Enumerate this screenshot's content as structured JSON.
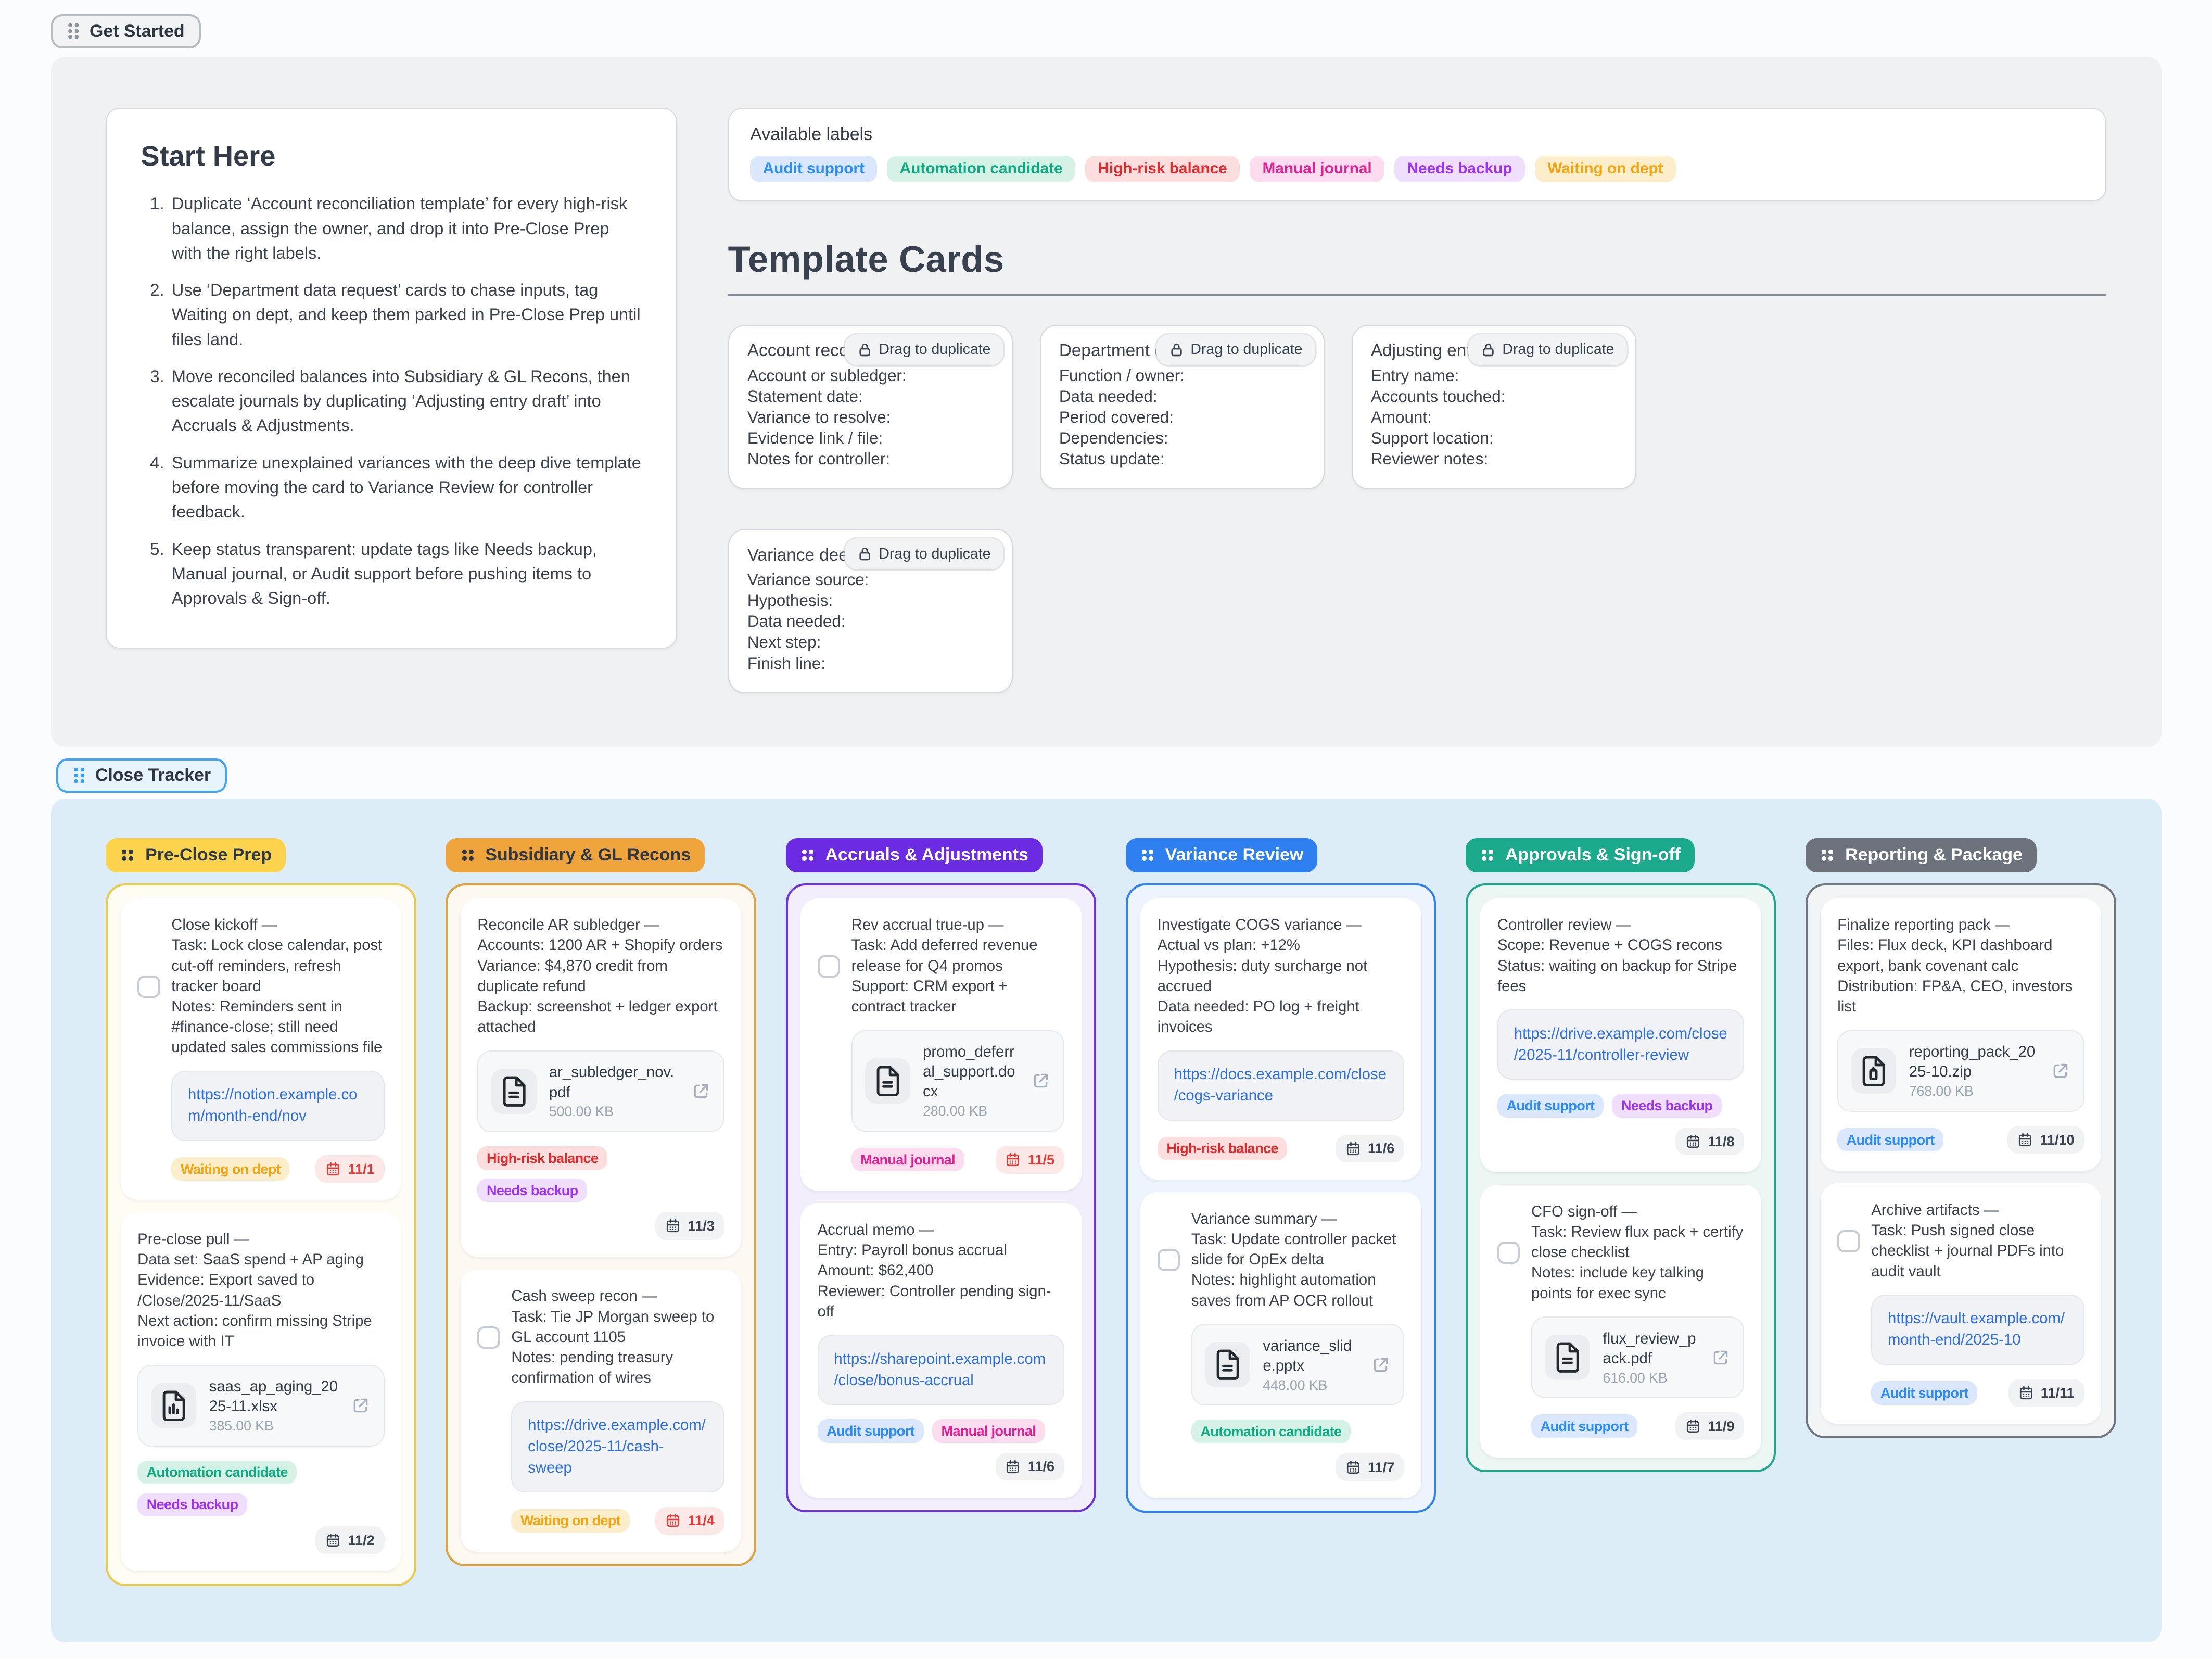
{
  "get_started": {
    "label": "Get Started"
  },
  "start_here": {
    "title": "Start Here",
    "items": [
      "Duplicate ‘Account reconciliation template’ for every high-risk balance, assign the owner, and drop it into Pre-Close Prep with the right labels.",
      "Use ‘Department data request’ cards to chase inputs, tag Waiting on dept, and keep them parked in Pre-Close Prep until files land.",
      "Move reconciled balances into Subsidiary & GL Recons, then escalate journals by duplicating ‘Adjusting entry draft’ into Accruals & Adjustments.",
      "Summarize unexplained variances with the deep dive template before moving the card to Variance Review for controller feedback.",
      "Keep status transparent: update tags like Needs backup, Manual journal, or Audit support before pushing items to Approvals & Sign-off."
    ]
  },
  "available_labels": {
    "title": "Available labels",
    "labels": [
      "Audit support",
      "Automation candidate",
      "High-risk balance",
      "Manual journal",
      "Needs backup",
      "Waiting on dept"
    ]
  },
  "template_section": {
    "title": "Template Cards",
    "drag_badge": "Drag to duplicate",
    "cards": [
      {
        "title": "Account reconcil",
        "lines": [
          "Account or subledger:",
          "Statement date:",
          "Variance to resolve:",
          "Evidence link / file:",
          "Notes for controller:"
        ]
      },
      {
        "title": "Department data",
        "lines": [
          "Function / owner:",
          "Data needed:",
          "Period covered:",
          "Dependencies:",
          "Status update:"
        ]
      },
      {
        "title": "Adjusting entry d",
        "lines": [
          "Entry name:",
          "Accounts touched:",
          "Amount:",
          "Support location:",
          "Reviewer notes:"
        ]
      },
      {
        "title": "Variance deep di",
        "lines": [
          "Variance source:",
          "Hypothesis:",
          "Data needed:",
          "Next step:",
          "Finish line:"
        ]
      }
    ]
  },
  "close_tracker": {
    "label": "Close Tracker"
  },
  "board": {
    "columns": [
      {
        "name": "Pre-Close Prep",
        "theme": "yellow",
        "cards": [
          {
            "checkbox": true,
            "text_lines": [
              "Close kickoff —",
              "Task: Lock close calendar, post cut-off reminders, refresh tracker board",
              "Notes: Reminders sent in #finance-close; still need updated sales commissions file"
            ],
            "link": "https://notion.example.com/month-end/nov",
            "labels": [
              "Waiting on dept"
            ],
            "due": {
              "text": "11/1",
              "status": "overdue"
            }
          },
          {
            "checkbox": false,
            "text_lines": [
              "Pre-close pull —",
              "Data set: SaaS spend + AP aging",
              "Evidence: Export saved to /Close/2025-11/SaaS",
              "Next action: confirm missing Stripe invoice with IT"
            ],
            "file": {
              "name": "saas_ap_aging_2025-11.xlsx",
              "size": "385.00 KB",
              "icon": "file_chart"
            },
            "labels": [
              "Automation candidate",
              "Needs backup"
            ],
            "due": {
              "text": "11/2",
              "status": "normal"
            }
          }
        ]
      },
      {
        "name": "Subsidiary & GL Recons",
        "theme": "orange",
        "cards": [
          {
            "checkbox": false,
            "text_lines": [
              "Reconcile AR subledger —",
              "Accounts: 1200 AR + Shopify orders",
              "Variance: $4,870 credit from duplicate refund",
              "Backup: screenshot + ledger export attached"
            ],
            "file": {
              "name": "ar_subledger_nov.pdf",
              "size": "500.00 KB",
              "icon": "file_lines"
            },
            "labels": [
              "High-risk balance",
              "Needs backup"
            ],
            "due": {
              "text": "11/3",
              "status": "normal"
            }
          },
          {
            "checkbox": true,
            "text_lines": [
              "Cash sweep recon —",
              "Task: Tie JP Morgan sweep to GL account 1105",
              "Notes: pending treasury confirmation of wires"
            ],
            "link": "https://drive.example.com/close/2025-11/cash-sweep",
            "labels": [
              "Waiting on dept"
            ],
            "due": {
              "text": "11/4",
              "status": "overdue"
            }
          }
        ]
      },
      {
        "name": "Accruals & Adjustments",
        "theme": "purple",
        "cards": [
          {
            "checkbox": true,
            "text_lines": [
              "Rev accrual true-up —",
              "Task: Add deferred revenue release for Q4 promos",
              "Support: CRM export + contract tracker"
            ],
            "file": {
              "name": "promo_deferral_support.docx",
              "size": "280.00 KB",
              "icon": "file_lines"
            },
            "labels": [
              "Manual journal"
            ],
            "due": {
              "text": "11/5",
              "status": "overdue"
            }
          },
          {
            "checkbox": false,
            "text_lines": [
              "Accrual memo —",
              "Entry: Payroll bonus accrual",
              "Amount: $62,400",
              "Reviewer: Controller pending sign-off"
            ],
            "link": "https://sharepoint.example.com/close/bonus-accrual",
            "labels": [
              "Audit support",
              "Manual journal"
            ],
            "due": {
              "text": "11/6",
              "status": "normal"
            }
          }
        ]
      },
      {
        "name": "Variance Review",
        "theme": "blue",
        "cards": [
          {
            "checkbox": false,
            "text_lines": [
              "Investigate COGS variance —",
              "Actual vs plan: +12%",
              "Hypothesis: duty surcharge not accrued",
              "Data needed: PO log + freight invoices"
            ],
            "link": "https://docs.example.com/close/cogs-variance",
            "labels": [
              "High-risk balance"
            ],
            "due": {
              "text": "11/6",
              "status": "normal"
            }
          },
          {
            "checkbox": true,
            "text_lines": [
              "Variance summary —",
              "Task: Update controller packet slide for OpEx delta",
              "Notes: highlight automation saves from AP OCR rollout"
            ],
            "file": {
              "name": "variance_slide.pptx",
              "size": "448.00 KB",
              "icon": "file_lines"
            },
            "labels": [
              "Automation candidate"
            ],
            "due": {
              "text": "11/7",
              "status": "normal"
            }
          }
        ]
      },
      {
        "name": "Approvals & Sign-off",
        "theme": "teal",
        "cards": [
          {
            "checkbox": false,
            "text_lines": [
              "Controller review —",
              "Scope: Revenue + COGS recons",
              "Status: waiting on backup for Stripe fees"
            ],
            "link": "https://drive.example.com/close/2025-11/controller-review",
            "labels": [
              "Audit support",
              "Needs backup"
            ],
            "due": {
              "text": "11/8",
              "status": "normal"
            }
          },
          {
            "checkbox": true,
            "text_lines": [
              "CFO sign-off —",
              "Task: Review flux pack + certify close checklist",
              "Notes: include key talking points for exec sync"
            ],
            "file": {
              "name": "flux_review_pack.pdf",
              "size": "616.00 KB",
              "icon": "file_lines"
            },
            "labels": [
              "Audit support"
            ],
            "due": {
              "text": "11/9",
              "status": "normal"
            }
          }
        ]
      },
      {
        "name": "Reporting & Package",
        "theme": "gray",
        "cards": [
          {
            "checkbox": false,
            "text_lines": [
              "Finalize reporting pack —",
              "Files: Flux deck, KPI dashboard export, bank covenant calc",
              "Distribution: FP&A, CEO, investors list"
            ],
            "file": {
              "name": "reporting_pack_2025-10.zip",
              "size": "768.00 KB",
              "icon": "file_zip"
            },
            "labels": [
              "Audit support"
            ],
            "due": {
              "text": "11/10",
              "status": "normal"
            }
          },
          {
            "checkbox": true,
            "text_lines": [
              "Archive artifacts —",
              "Task: Push signed close checklist + journal PDFs into audit vault"
            ],
            "link": "https://vault.example.com/month-end/2025-10",
            "labels": [
              "Audit support"
            ],
            "due": {
              "text": "11/11",
              "status": "normal"
            }
          }
        ]
      }
    ]
  },
  "colors": {
    "page_bg": "#fbfcfe",
    "top_panel_bg": "#f0f1f3",
    "board_bg": "#dcedf7",
    "link": "#2e6fe0",
    "labels": {
      "Audit support": {
        "bg": "#dbe7fd",
        "fg": "#2b8bf7"
      },
      "Automation candidate": {
        "bg": "#d6f2e6",
        "fg": "#0fa981"
      },
      "High-risk balance": {
        "bg": "#fcdede",
        "fg": "#df2b2b"
      },
      "Manual journal": {
        "bg": "#fcdcef",
        "fg": "#e0218f"
      },
      "Needs backup": {
        "bg": "#efdefc",
        "fg": "#9c33f2"
      },
      "Waiting on dept": {
        "bg": "#fdeecb",
        "fg": "#f2a413"
      }
    },
    "themes": {
      "yellow": {
        "header_bg": "#fcd34d",
        "header_fg": "#303844",
        "border": "#eac94e",
        "body_bg": "#fefcf3"
      },
      "orange": {
        "header_bg": "#f0a43c",
        "header_fg": "#303844",
        "border": "#dfa040",
        "body_bg": "#fdf8f0"
      },
      "purple": {
        "header_bg": "#6a2be2",
        "header_fg": "#ffffff",
        "border": "#6d31dc",
        "body_bg": "#f2eefb"
      },
      "blue": {
        "header_bg": "#2e80f0",
        "header_fg": "#ffffff",
        "border": "#2f80ed",
        "body_bg": "#edf4fd"
      },
      "teal": {
        "header_bg": "#1caa8c",
        "header_fg": "#ffffff",
        "border": "#21a58b",
        "body_bg": "#ecf6f2"
      },
      "gray": {
        "header_bg": "#6d737d",
        "header_fg": "#ffffff",
        "border": "#70767f",
        "body_bg": "#f3f4f6"
      }
    },
    "due": {
      "normal": {
        "bg": "#f1f2f4",
        "fg": "#3a414d"
      },
      "overdue": {
        "bg": "#fde8e8",
        "fg": "#e23b36"
      }
    }
  }
}
